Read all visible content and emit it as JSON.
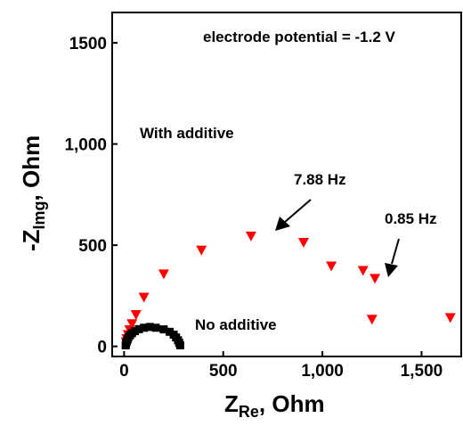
{
  "chart_data": {
    "type": "scatter",
    "title": "",
    "xlabel": {
      "main": "Z",
      "sub": "Re",
      "tail": ", Ohm"
    },
    "ylabel": {
      "main": "-Z",
      "sub": "Img",
      "tail": ", Ohm"
    },
    "xlim": [
      -60,
      1700
    ],
    "ylim": [
      -50,
      1650
    ],
    "xticks": [
      {
        "value": 0,
        "label": "0"
      },
      {
        "value": 500,
        "label": "500"
      },
      {
        "value": 1000,
        "label": "1,000"
      },
      {
        "value": 1500,
        "label": "1,500"
      }
    ],
    "yticks": [
      {
        "value": 0,
        "label": "0"
      },
      {
        "value": 500,
        "label": "500"
      },
      {
        "value": 1000,
        "label": "1,000"
      },
      {
        "value": 1500,
        "label": "1500"
      }
    ],
    "grid": false,
    "series": [
      {
        "marker": "triangle-down",
        "color": "#ff0000",
        "points": [
          [
            10,
            22
          ],
          [
            14,
            38
          ],
          [
            20,
            58
          ],
          [
            28,
            82
          ],
          [
            40,
            112
          ],
          [
            60,
            157
          ],
          [
            100,
            243
          ],
          [
            200,
            358
          ],
          [
            390,
            476
          ],
          [
            640,
            545
          ],
          [
            905,
            514
          ],
          [
            1045,
            397
          ],
          [
            1205,
            375
          ],
          [
            1265,
            336
          ],
          [
            1250,
            134
          ],
          [
            1645,
            142
          ]
        ]
      },
      {
        "marker": "square",
        "color": "#000000",
        "points": [
          [
            8,
            5
          ],
          [
            10,
            15
          ],
          [
            14,
            25
          ],
          [
            18,
            35
          ],
          [
            22,
            45
          ],
          [
            30,
            55
          ],
          [
            40,
            65
          ],
          [
            55,
            75
          ],
          [
            75,
            85
          ],
          [
            100,
            92
          ],
          [
            130,
            96
          ],
          [
            160,
            92
          ],
          [
            200,
            84
          ],
          [
            230,
            72
          ],
          [
            250,
            58
          ],
          [
            262,
            44
          ],
          [
            272,
            30
          ],
          [
            278,
            17
          ],
          [
            283,
            5
          ]
        ]
      }
    ],
    "annotations": [
      {
        "text": "electrode potential = -1.2 V"
      },
      {
        "text": "With additive"
      },
      {
        "text": "No additive"
      },
      {
        "text": "7.88 Hz"
      },
      {
        "text": "0.85 Hz"
      }
    ]
  }
}
